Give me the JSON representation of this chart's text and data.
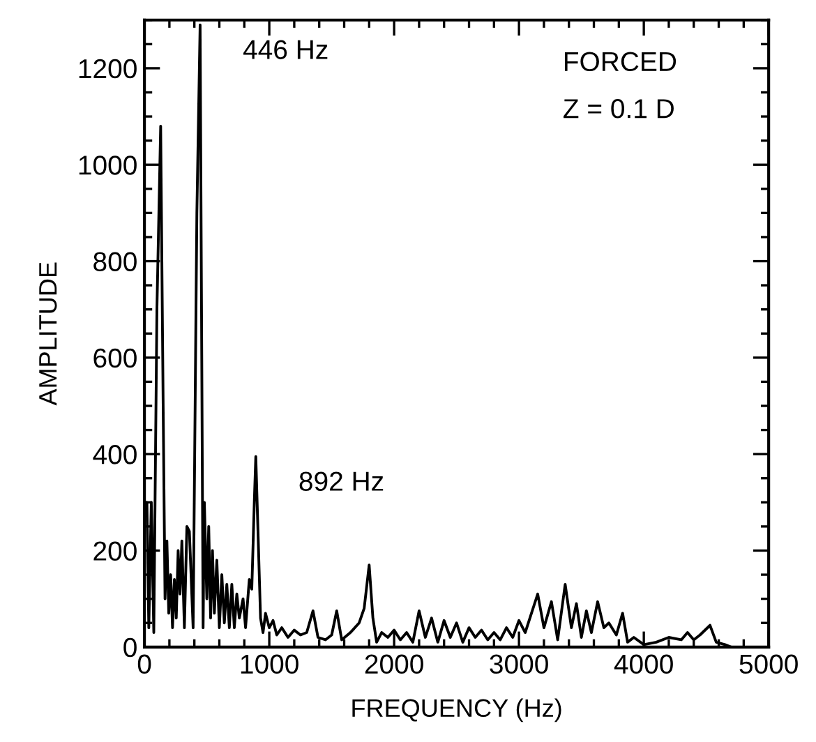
{
  "chart_data": {
    "type": "line",
    "xlabel": "FREQUENCY (Hz)",
    "ylabel": "AMPLITUDE",
    "xlim": [
      0,
      5000
    ],
    "ylim": [
      0,
      1300
    ],
    "xticks": [
      0,
      1000,
      2000,
      3000,
      4000,
      5000
    ],
    "yticks": [
      0,
      200,
      400,
      600,
      800,
      1000,
      1200
    ],
    "grid": false,
    "legend": false,
    "marker": "none",
    "line_style": "solid",
    "annotations": [
      {
        "text": "446 Hz",
        "x": 446,
        "y": 1290
      },
      {
        "text": "892 Hz",
        "x": 892,
        "y": 395
      },
      "FORCED",
      "Z = 0.1 D"
    ],
    "series": [
      {
        "color": "#000000",
        "x": [
          0,
          20,
          35,
          55,
          75,
          100,
          130,
          150,
          165,
          180,
          195,
          210,
          225,
          240,
          255,
          270,
          285,
          300,
          320,
          340,
          360,
          390,
          420,
          446,
          470,
          480,
          500,
          515,
          530,
          545,
          560,
          580,
          600,
          620,
          640,
          660,
          680,
          700,
          720,
          740,
          760,
          790,
          810,
          840,
          860,
          880,
          892,
          905,
          930,
          950,
          970,
          1000,
          1030,
          1060,
          1100,
          1150,
          1200,
          1250,
          1300,
          1350,
          1390,
          1450,
          1500,
          1540,
          1580,
          1650,
          1720,
          1760,
          1800,
          1830,
          1860,
          1900,
          1950,
          2000,
          2050,
          2100,
          2150,
          2200,
          2250,
          2300,
          2350,
          2400,
          2450,
          2500,
          2550,
          2600,
          2650,
          2700,
          2750,
          2800,
          2850,
          2900,
          2950,
          3000,
          3050,
          3100,
          3150,
          3200,
          3260,
          3310,
          3370,
          3420,
          3460,
          3500,
          3540,
          3580,
          3630,
          3680,
          3720,
          3780,
          3830,
          3870,
          3920,
          4000,
          4100,
          4200,
          4300,
          4350,
          4400,
          4450,
          4530,
          4580,
          4650,
          4700
        ],
        "values": [
          300,
          300,
          40,
          300,
          30,
          700,
          1080,
          500,
          100,
          220,
          70,
          150,
          40,
          140,
          60,
          200,
          110,
          220,
          40,
          250,
          240,
          40,
          900,
          1290,
          40,
          300,
          100,
          250,
          60,
          200,
          70,
          180,
          40,
          150,
          50,
          130,
          40,
          130,
          40,
          110,
          60,
          100,
          40,
          140,
          120,
          300,
          395,
          280,
          60,
          30,
          70,
          40,
          55,
          25,
          40,
          20,
          35,
          25,
          30,
          75,
          20,
          15,
          25,
          75,
          15,
          30,
          50,
          80,
          170,
          60,
          10,
          30,
          20,
          35,
          15,
          30,
          10,
          75,
          20,
          60,
          10,
          55,
          20,
          50,
          10,
          40,
          20,
          35,
          15,
          30,
          15,
          40,
          20,
          55,
          30,
          70,
          110,
          40,
          94,
          15,
          130,
          40,
          90,
          20,
          75,
          30,
          94,
          40,
          50,
          25,
          70,
          10,
          20,
          5,
          10,
          20,
          15,
          30,
          15,
          25,
          45,
          10,
          5,
          0
        ]
      }
    ]
  }
}
